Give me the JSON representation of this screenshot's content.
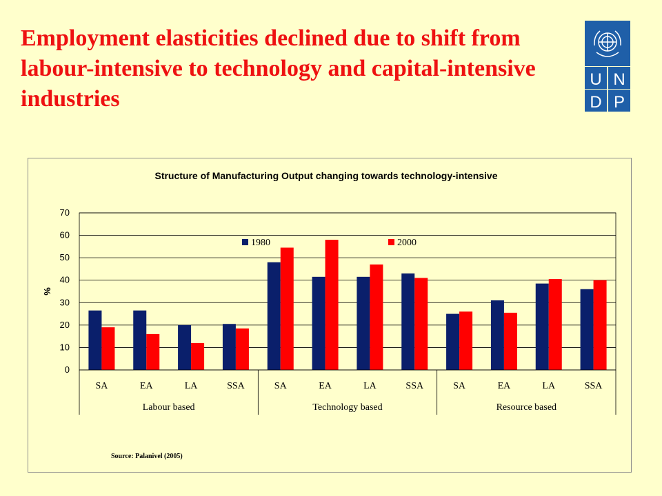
{
  "slide": {
    "title": "Employment elasticities declined due to shift from labour-intensive to technology and capital-intensive industries"
  },
  "logo": {
    "text": "UNDP",
    "letters": [
      "U",
      "N",
      "D",
      "P"
    ],
    "color": "#1F5FA8"
  },
  "chart_data": {
    "type": "bar",
    "title": "Structure of Manufacturing Output changing towards technology-intensive",
    "ylabel": "%",
    "xlabel": "",
    "ylim": [
      0,
      70
    ],
    "yticks": [
      0,
      10,
      20,
      30,
      40,
      50,
      60,
      70
    ],
    "grid": true,
    "legend_position": "top",
    "categories": [
      "SA",
      "EA",
      "LA",
      "SSA",
      "SA",
      "EA",
      "LA",
      "SSA",
      "SA",
      "EA",
      "LA",
      "SSA"
    ],
    "groups": [
      {
        "name": "Labour based",
        "count": 4
      },
      {
        "name": "Technology based",
        "count": 4
      },
      {
        "name": "Resource based",
        "count": 4
      }
    ],
    "series": [
      {
        "name": "1980",
        "color": "#0A1F6B",
        "values": [
          26.5,
          26.5,
          20,
          20.5,
          48,
          41.5,
          41.5,
          43,
          25,
          31,
          38.5,
          36
        ]
      },
      {
        "name": "2000",
        "color": "#FF0000",
        "values": [
          19,
          16,
          12,
          18.5,
          54.5,
          58,
          47,
          41,
          26,
          25.5,
          40.5,
          40
        ]
      }
    ],
    "source": "Source: Palanivel (2005)"
  }
}
